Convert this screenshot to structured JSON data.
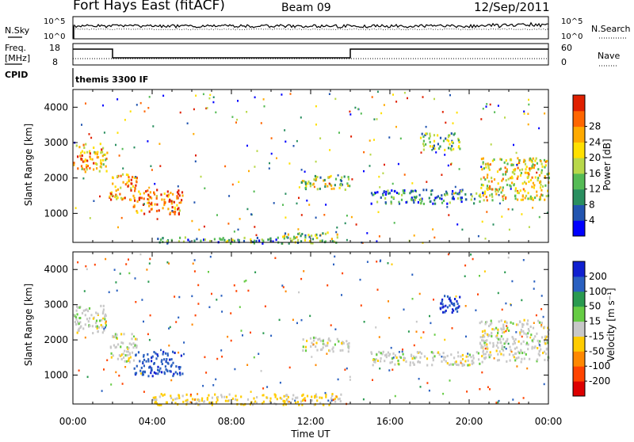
{
  "header": {
    "station": "Fort Hays East (fitACF)",
    "beam": "Beam 09",
    "date": "12/Sep/2011"
  },
  "nsky": {
    "left_label": "N.Sky",
    "right_label": "N.Search",
    "ticks": [
      "10^5",
      "10^0"
    ]
  },
  "freq": {
    "left_label_1": "Freq.",
    "left_label_2": "[MHz]",
    "left_ticks": [
      "18",
      "8"
    ],
    "right_label": "Nave",
    "right_ticks": [
      "60",
      "0"
    ],
    "cpid_label": "CPID",
    "program": "themis 3300 IF"
  },
  "chart_data": [
    {
      "type": "heatmap",
      "panel": "power",
      "ylabel": "Slant Range [km]",
      "xlabel": "Time UT",
      "xlim_hours": [
        0,
        24
      ],
      "ylim_km": [
        180,
        4500
      ],
      "x_tick_labels": [
        "00:00",
        "04:00",
        "08:00",
        "12:00",
        "16:00",
        "20:00",
        "00:00"
      ],
      "y_ticks": [
        1000,
        2000,
        3000,
        4000
      ],
      "colorbar": {
        "label": "Power [dB]",
        "tick_labels": [
          "4",
          "8",
          "12",
          "16",
          "20",
          "24",
          "28"
        ],
        "range": [
          0,
          30
        ],
        "colors": [
          "#0000ff",
          "#2255b0",
          "#2a8f60",
          "#55bb55",
          "#b8d84a",
          "#ffe000",
          "#ffaa00",
          "#ff6600",
          "#e02000"
        ]
      },
      "scatter_regions": [
        {
          "t": [
            0.0,
            1.7
          ],
          "r": [
            2200,
            3000
          ],
          "value": 20
        },
        {
          "t": [
            1.8,
            3.2
          ],
          "r": [
            1400,
            2200
          ],
          "value": 22
        },
        {
          "t": [
            3.0,
            5.5
          ],
          "r": [
            1000,
            1700
          ],
          "value": 24
        },
        {
          "t": [
            10.5,
            13.5
          ],
          "r": [
            180,
            500
          ],
          "value": 14
        },
        {
          "t": [
            4.0,
            10.5
          ],
          "r": [
            180,
            350
          ],
          "value": 10
        },
        {
          "t": [
            11.5,
            14.0
          ],
          "r": [
            1700,
            2100
          ],
          "value": 14
        },
        {
          "t": [
            15.0,
            20.5
          ],
          "r": [
            1300,
            1700
          ],
          "value": 8
        },
        {
          "t": [
            20.5,
            24.0
          ],
          "r": [
            1400,
            2600
          ],
          "value": 18
        },
        {
          "t": [
            17.5,
            19.5
          ],
          "r": [
            2800,
            3300
          ],
          "value": 12
        }
      ]
    },
    {
      "type": "heatmap",
      "panel": "velocity",
      "ylabel": "Slant Range [km]",
      "xlabel": "Time UT",
      "xlim_hours": [
        0,
        24
      ],
      "ylim_km": [
        180,
        4500
      ],
      "x_tick_labels": [
        "00:00",
        "04:00",
        "08:00",
        "12:00",
        "16:00",
        "20:00",
        "00:00"
      ],
      "y_ticks": [
        1000,
        2000,
        3000,
        4000
      ],
      "colorbar": {
        "label": "Velocity [m s⁻¹]",
        "tick_labels": [
          "200",
          "100",
          "50",
          "15",
          "-15",
          "-50",
          "-100",
          "-200"
        ],
        "colors": [
          "#1020d0",
          "#2a60c0",
          "#2a9a50",
          "#66cc44",
          "#c8c8c8",
          "#ffcc00",
          "#ff8800",
          "#ff4400",
          "#dd0000"
        ]
      },
      "scatter_regions": [
        {
          "t": [
            0.0,
            1.7
          ],
          "r": [
            2200,
            3000
          ],
          "value": 0
        },
        {
          "t": [
            1.8,
            3.2
          ],
          "r": [
            1400,
            2200
          ],
          "value": 0
        },
        {
          "t": [
            3.0,
            5.5
          ],
          "r": [
            1000,
            1700
          ],
          "value": 180
        },
        {
          "t": [
            4.0,
            13.5
          ],
          "r": [
            180,
            500
          ],
          "value": -20
        },
        {
          "t": [
            11.5,
            14.0
          ],
          "r": [
            1700,
            2100
          ],
          "value": 0
        },
        {
          "t": [
            15.0,
            20.5
          ],
          "r": [
            1300,
            1700
          ],
          "value": 0
        },
        {
          "t": [
            18.5,
            19.5
          ],
          "r": [
            2800,
            3300
          ],
          "value": 200
        },
        {
          "t": [
            20.5,
            24.0
          ],
          "r": [
            1400,
            2600
          ],
          "value": 0
        }
      ]
    }
  ]
}
